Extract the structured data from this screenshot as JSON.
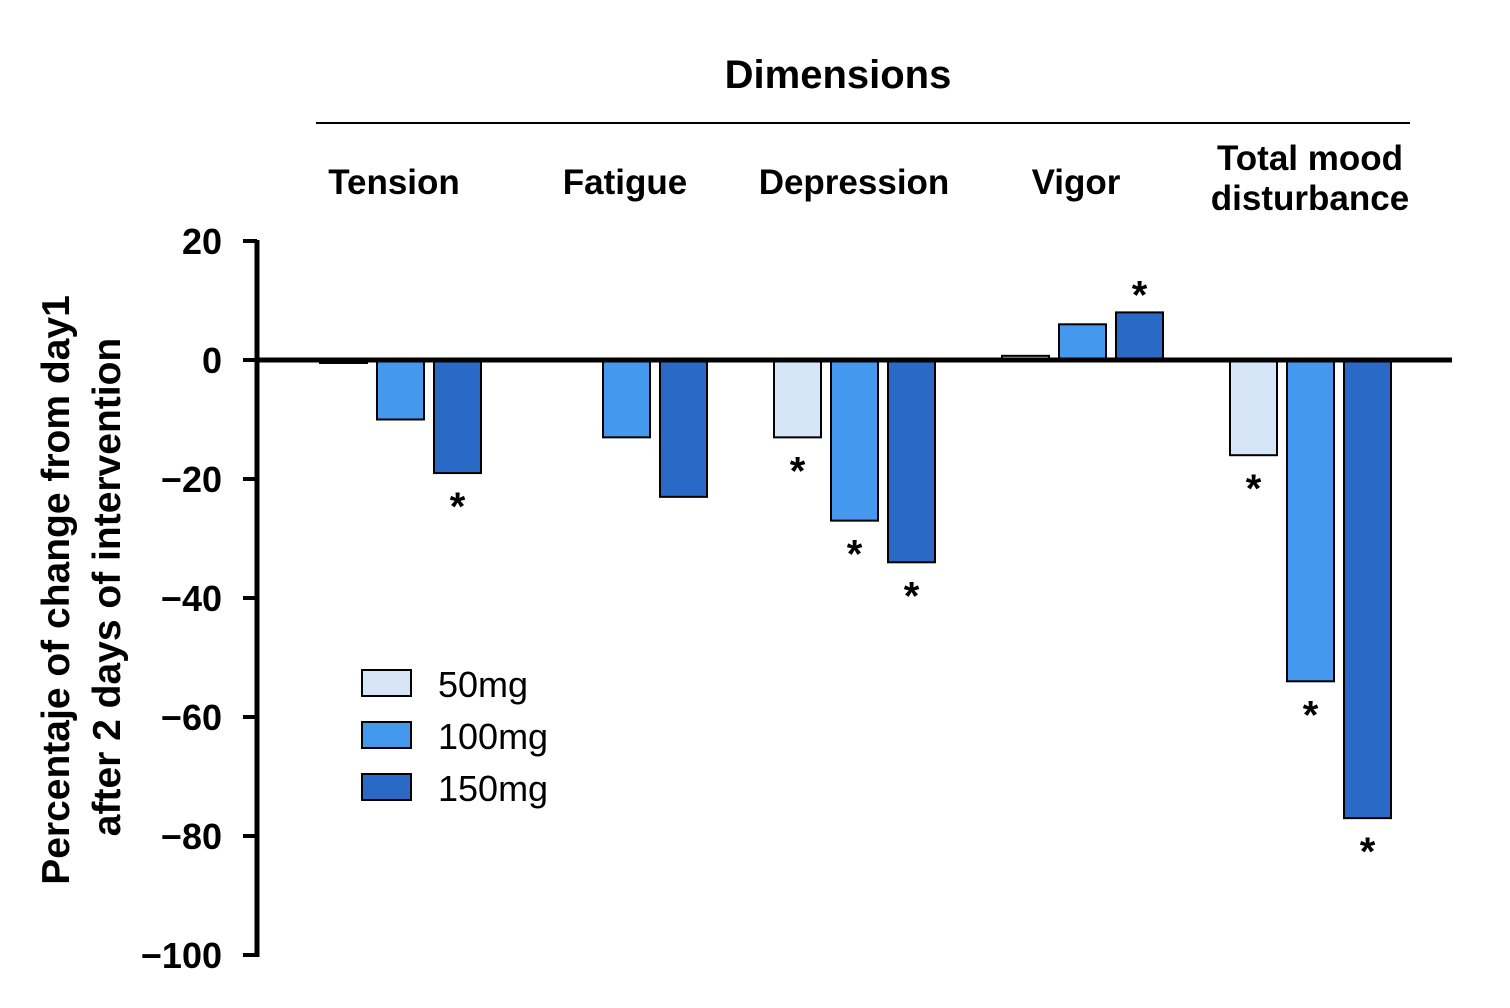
{
  "chart_data": {
    "type": "bar",
    "title": "Dimensions",
    "ylabel_line1": "Percentaje of change from day1",
    "ylabel_line2": "after 2 days of  intervention",
    "xlabel": "",
    "ylim": [
      -100,
      20
    ],
    "yticks": [
      20,
      0,
      -20,
      -40,
      -60,
      -80,
      -100
    ],
    "ytick_labels": [
      "20",
      "0",
      "−20",
      "−40",
      "−60",
      "−80",
      "−100"
    ],
    "categories": [
      "Tension",
      "Fatigue",
      "Depression",
      "Vigor",
      "Total mood disturbance"
    ],
    "category_lines": [
      [
        "Tension"
      ],
      [
        "Fatigue"
      ],
      [
        "Depression"
      ],
      [
        "Vigor"
      ],
      [
        "Total mood",
        "disturbance"
      ]
    ],
    "series": [
      {
        "name": "50mg",
        "color": "#d6e6f8",
        "values": [
          -0.5,
          0,
          -13,
          0.7,
          -16
        ],
        "significant": [
          false,
          false,
          true,
          false,
          true
        ]
      },
      {
        "name": "100mg",
        "color": "#4499ee",
        "values": [
          -10,
          -13,
          -27,
          6,
          -54
        ],
        "significant": [
          false,
          false,
          true,
          false,
          true
        ]
      },
      {
        "name": "150mg",
        "color": "#2a6ac6",
        "values": [
          -19,
          -23,
          -34,
          8,
          -77
        ],
        "significant": [
          true,
          false,
          true,
          true,
          true
        ]
      }
    ],
    "significance_marker": "*",
    "grid": false,
    "legend_position": "lower-left"
  }
}
